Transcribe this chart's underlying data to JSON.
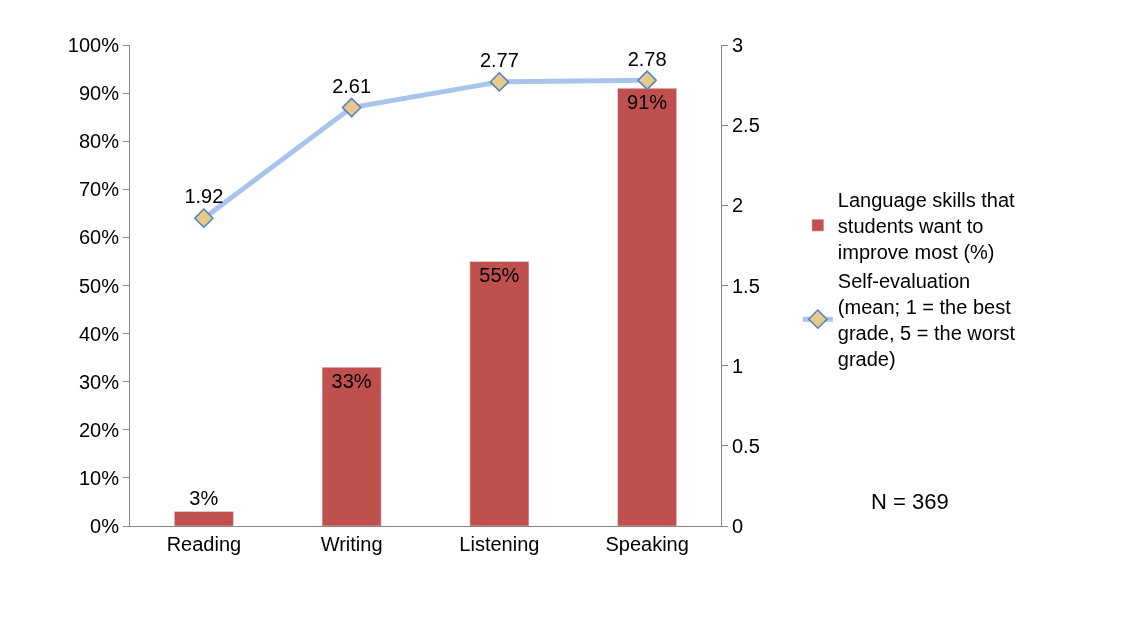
{
  "chart_data": {
    "type": "bar",
    "categories": [
      "Reading",
      "Writing",
      "Listening",
      "Speaking"
    ],
    "series": [
      {
        "name": "Language skills that students want to improve most (%)",
        "color": "#c0504d",
        "values": [
          3,
          33,
          55,
          91
        ],
        "value_labels": [
          "3%",
          "33%",
          "55%",
          "91%"
        ]
      },
      {
        "name": "Self-evaluation (mean; 1 = the best grade, 5 = the worst grade)",
        "type": "line",
        "axis": "y2",
        "color": "#a9c4eb",
        "values": [
          1.92,
          2.61,
          2.77,
          2.78
        ],
        "value_labels": [
          "1.92",
          "2.61",
          "2.77",
          "2.78"
        ]
      }
    ],
    "ylim": [
      0,
      100
    ],
    "yticks": [
      {
        "value": 0,
        "label": "0%"
      },
      {
        "value": 10,
        "label": "10%"
      },
      {
        "value": 20,
        "label": "20%"
      },
      {
        "value": 30,
        "label": "30%"
      },
      {
        "value": 40,
        "label": "40%"
      },
      {
        "value": 50,
        "label": "50%"
      },
      {
        "value": 60,
        "label": "60%"
      },
      {
        "value": 70,
        "label": "70%"
      },
      {
        "value": 80,
        "label": "80%"
      },
      {
        "value": 90,
        "label": "90%"
      },
      {
        "value": 100,
        "label": "100%"
      }
    ],
    "y2lim": [
      0,
      3
    ],
    "y2ticks": [
      0,
      0.5,
      1,
      1.5,
      2,
      2.5,
      3
    ],
    "marker": "diamond",
    "grid": false,
    "legend": "right",
    "annotations": [
      "N = 369"
    ]
  }
}
